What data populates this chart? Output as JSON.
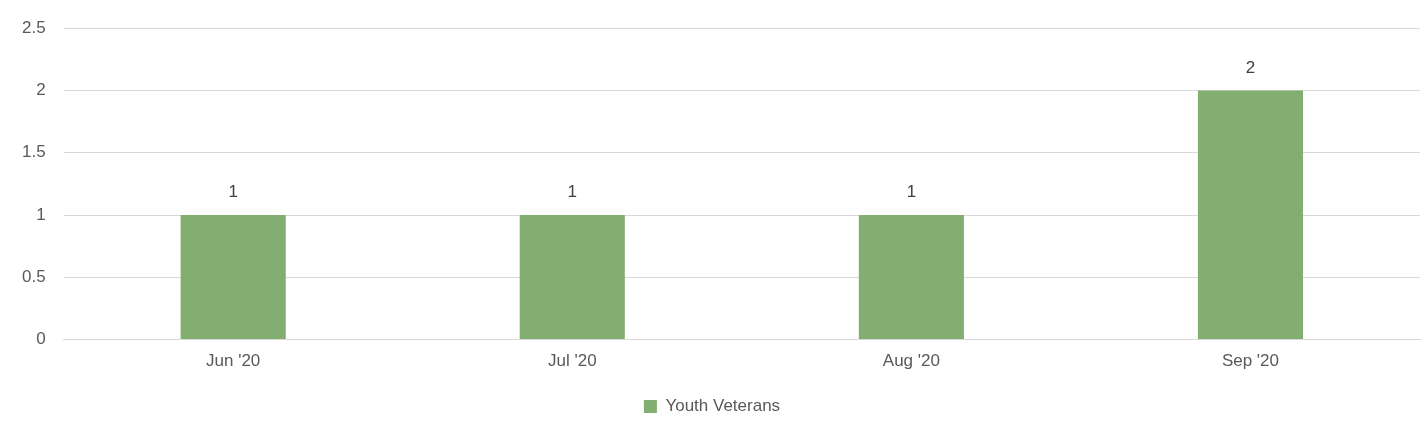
{
  "chart_data": {
    "type": "bar",
    "categories": [
      "Jun '20",
      "Jul '20",
      "Aug '20",
      "Sep '20"
    ],
    "series": [
      {
        "name": "Youth Veterans",
        "color": "#82ae72",
        "values": [
          1,
          1,
          1,
          2
        ]
      }
    ],
    "ylim": [
      0,
      2.5
    ],
    "yticks": [
      0,
      0.5,
      1,
      1.5,
      2,
      2.5
    ],
    "grid": "y",
    "legend": "bottom",
    "data_labels": true
  }
}
